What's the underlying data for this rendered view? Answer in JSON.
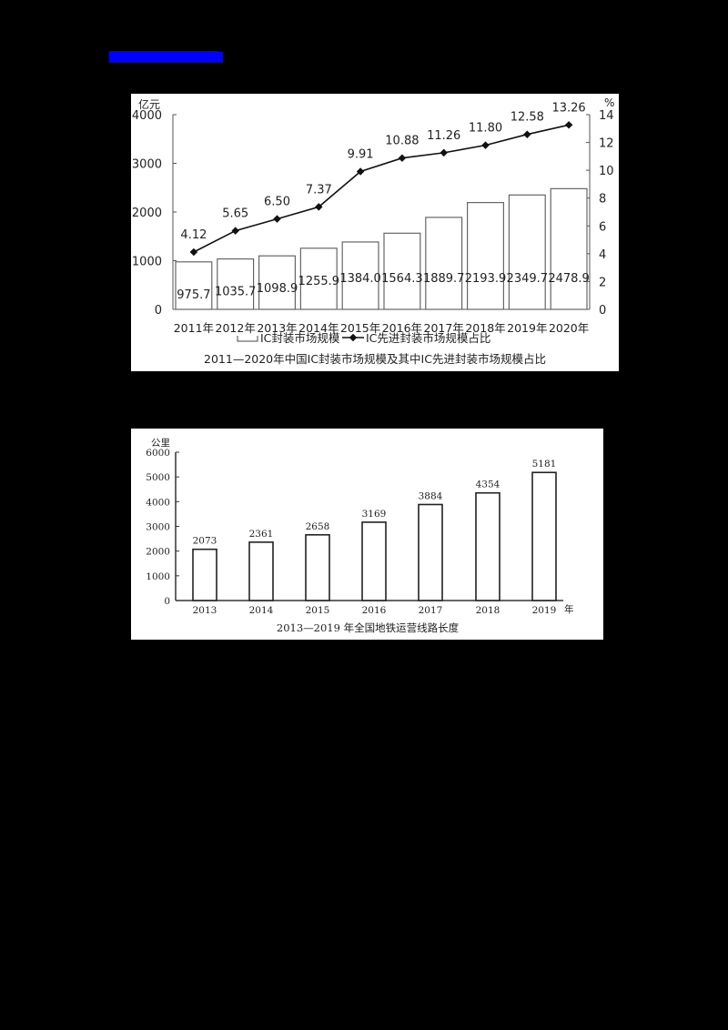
{
  "header": {
    "link_color": "#0000ff"
  },
  "chart_data": [
    {
      "type": "bar+line",
      "title": "2011—2020年中国IC封装市场规模及其中IC先进封装市场规模占比",
      "categories": [
        "2011年",
        "2012年",
        "2013年",
        "2014年",
        "2015年",
        "2016年",
        "2017年",
        "2018年",
        "2019年",
        "2020年"
      ],
      "series": [
        {
          "name": "IC封装市场规模",
          "type": "bar",
          "axis": "left",
          "unit": "亿元",
          "values": [
            975.7,
            1035.7,
            1098.9,
            1255.9,
            1384.0,
            1564.3,
            1889.7,
            2193.9,
            2349.7,
            2478.9
          ],
          "labels": [
            "975.7",
            "1035.7",
            "1098.9",
            "1255.9",
            "1384.0",
            "1564.3",
            "1889.7",
            "2193.9",
            "2349.7",
            "2478.9"
          ]
        },
        {
          "name": "IC先进封装市场规模占比",
          "type": "line",
          "axis": "right",
          "unit": "%",
          "values": [
            4.12,
            5.65,
            6.5,
            7.37,
            9.91,
            10.88,
            11.26,
            11.8,
            12.58,
            13.26
          ],
          "labels": [
            "4.12",
            "5.65",
            "6.50",
            "7.37",
            "9.91",
            "10.88",
            "11.26",
            "11.80",
            "12.58",
            "13.26"
          ]
        }
      ],
      "ylabel": "亿元",
      "ylim": [
        0,
        4000
      ],
      "yticks": [
        "0",
        "1000",
        "2000",
        "3000",
        "4000"
      ],
      "y2label": "%",
      "y2lim": [
        0,
        14
      ],
      "y2ticks": [
        "0",
        "2",
        "4",
        "6",
        "8",
        "10",
        "12",
        "14"
      ],
      "legend": [
        "IC封装市场规模",
        "IC先进封装市场规模占比"
      ],
      "legend_position": "bottom",
      "grid": false
    },
    {
      "type": "bar",
      "title": "2013—2019 年全国地铁运营线路长度",
      "categories": [
        "2013",
        "2014",
        "2015",
        "2016",
        "2017",
        "2018",
        "2019"
      ],
      "values": [
        2073,
        2361,
        2658,
        3169,
        3884,
        4354,
        5181
      ],
      "labels": [
        "2073",
        "2361",
        "2658",
        "3169",
        "3884",
        "4354",
        "5181"
      ],
      "ylabel": "公里",
      "xlabel": "年",
      "ylim": [
        0,
        6000
      ],
      "yticks": [
        "0",
        "1000",
        "2000",
        "3000",
        "4000",
        "5000",
        "6000"
      ],
      "grid": false
    }
  ]
}
